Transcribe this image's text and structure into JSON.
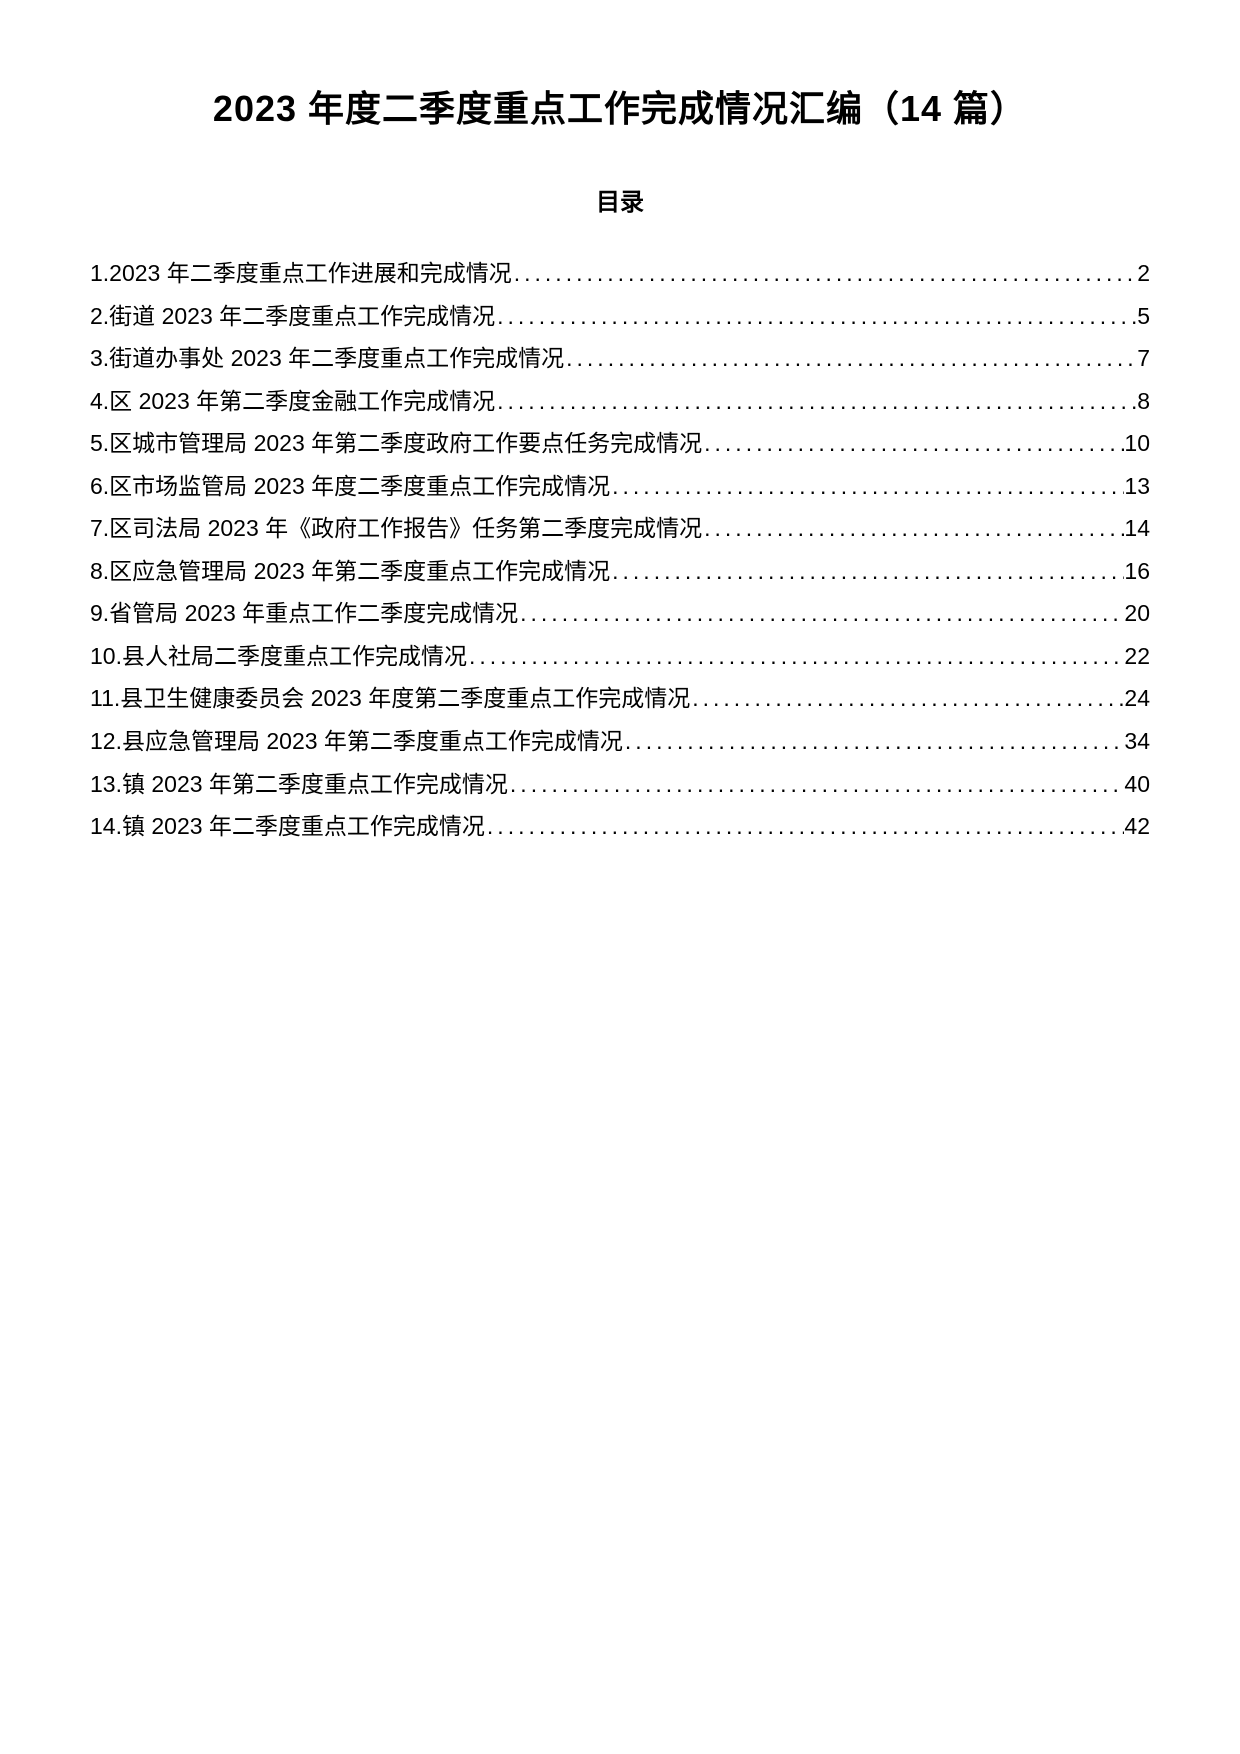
{
  "title": "2023 年度二季度重点工作完成情况汇编（14 篇）",
  "tocHeading": "目录",
  "tocItems": [
    {
      "label": "1.2023 年二季度重点工作进展和完成情况",
      "page": "2"
    },
    {
      "label": "2.街道 2023 年二季度重点工作完成情况",
      "page": "5"
    },
    {
      "label": "3.街道办事处 2023 年二季度重点工作完成情况",
      "page": "7"
    },
    {
      "label": "4.区 2023 年第二季度金融工作完成情况",
      "page": "8"
    },
    {
      "label": "5.区城市管理局 2023 年第二季度政府工作要点任务完成情况",
      "page": "10"
    },
    {
      "label": "6.区市场监管局 2023 年度二季度重点工作完成情况",
      "page": "13"
    },
    {
      "label": "7.区司法局 2023 年《政府工作报告》任务第二季度完成情况",
      "page": "14"
    },
    {
      "label": "8.区应急管理局 2023 年第二季度重点工作完成情况",
      "page": "16"
    },
    {
      "label": "9.省管局 2023 年重点工作二季度完成情况",
      "page": "20"
    },
    {
      "label": "10.县人社局二季度重点工作完成情况",
      "page": "22"
    },
    {
      "label": "11.县卫生健康委员会 2023 年度第二季度重点工作完成情况",
      "page": "24"
    },
    {
      "label": "12.县应急管理局 2023 年第二季度重点工作完成情况",
      "page": "34"
    },
    {
      "label": "13.镇 2023 年第二季度重点工作完成情况",
      "page": "40"
    },
    {
      "label": "14.镇 2023 年二季度重点工作完成情况",
      "page": "42"
    }
  ],
  "styling": {
    "pageWidth": 1240,
    "pageHeight": 1754,
    "backgroundColor": "#ffffff",
    "textColor": "#000000",
    "titleFontSize": 36,
    "tocHeadingFontSize": 24,
    "tocItemFontSize": 23,
    "lineHeight": 1.85,
    "fontFamily": "Microsoft YaHei, SimHei, sans-serif"
  }
}
